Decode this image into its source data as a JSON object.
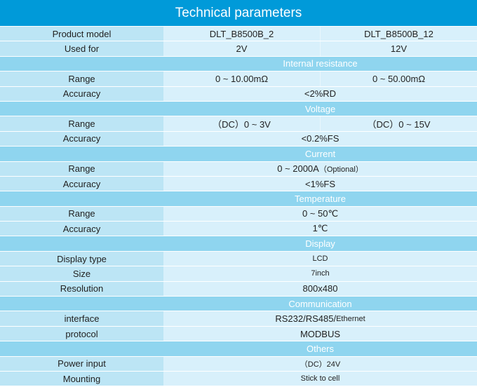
{
  "title": "Technical parameters",
  "colors": {
    "header": "#009ad9",
    "section": "#8fd5ef",
    "label_cell": "#bce5f5",
    "value_cell": "#d8f0fb"
  },
  "rows": [
    {
      "label": "Product model",
      "values": [
        "DLT_B8500B_2",
        "DLT_B8500B_12"
      ]
    },
    {
      "label": "Used for",
      "values": [
        "2V",
        "12V"
      ]
    },
    {
      "section": "Internal resistance"
    },
    {
      "label": "Range",
      "values": [
        "0 ~ 10.00mΩ",
        "0 ~ 50.00mΩ"
      ]
    },
    {
      "label": "Accuracy",
      "values": [
        "<2%RD"
      ]
    },
    {
      "section": "Voltage"
    },
    {
      "label": "Range",
      "values": [
        "（DC）0 ~ 3V",
        "（DC）0 ~ 15V"
      ]
    },
    {
      "label": "Accuracy",
      "values": [
        "<0.2%FS"
      ]
    },
    {
      "section": "Current"
    },
    {
      "label": "Range",
      "values": [
        "0 ~ 2000A"
      ],
      "note": "（Optional）"
    },
    {
      "label": "Accuracy",
      "values": [
        "<1%FS"
      ]
    },
    {
      "section": "Temperature"
    },
    {
      "label": "Range",
      "values": [
        "0 ~ 50℃"
      ]
    },
    {
      "label": "Accuracy",
      "values": [
        "1℃"
      ]
    },
    {
      "section": "Display"
    },
    {
      "label": "Display type",
      "values": [
        "LCD"
      ],
      "small": true
    },
    {
      "label": "Size",
      "values": [
        "7inch"
      ],
      "small": true
    },
    {
      "label": "Resolution",
      "values": [
        "800x480"
      ]
    },
    {
      "section": "Communication"
    },
    {
      "label": "interface",
      "values": [
        "RS232/RS485/"
      ],
      "note": " Ethernet"
    },
    {
      "label": "protocol",
      "values": [
        "MODBUS"
      ]
    },
    {
      "section": "Others"
    },
    {
      "label": "Power input",
      "values": [
        "（DC）24V"
      ],
      "small": true
    },
    {
      "label": "Mounting",
      "values": [
        "Stick to cell"
      ],
      "small": true
    }
  ]
}
